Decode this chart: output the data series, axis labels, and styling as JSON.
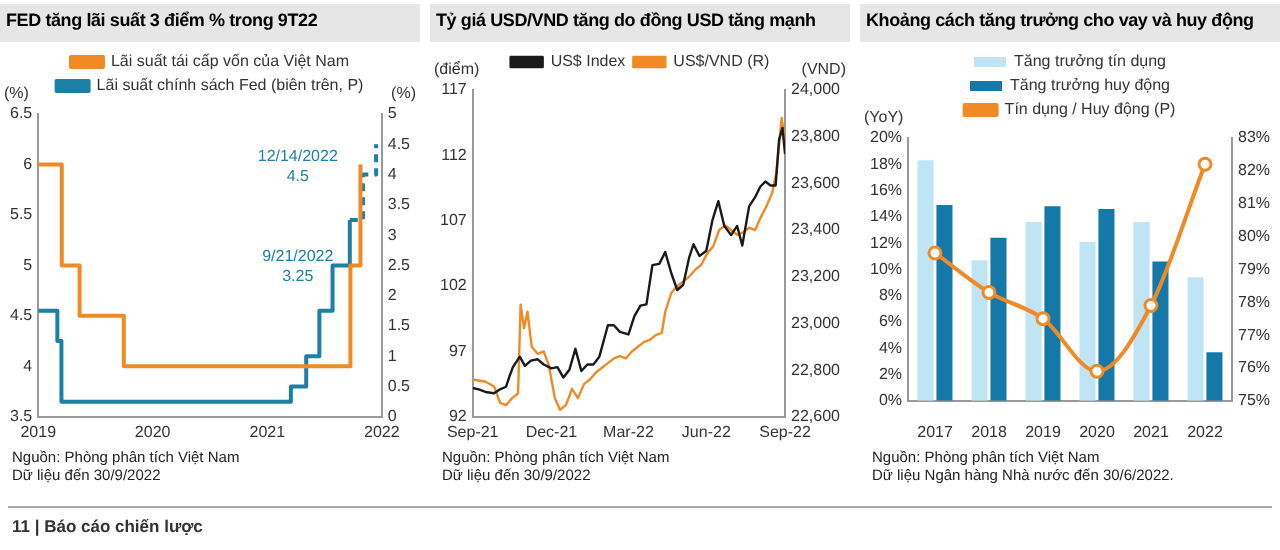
{
  "chart_data": [
    {
      "type": "step",
      "title": "FED tăng lãi suất 3 điểm % trong 9T22",
      "ylabel": "(%)",
      "y2label": "(%)",
      "legend": "top",
      "xlim": [
        "2019-01-01",
        "2022-01-01"
      ],
      "xticks": [
        {
          "value": "2019-01-01",
          "label": "2019"
        },
        {
          "value": "2020-01-01",
          "label": "2020"
        },
        {
          "value": "2021-01-01",
          "label": "2021"
        },
        {
          "value": "2022-01-01",
          "label": "2022"
        }
      ],
      "ylim": [
        3.5,
        6.5
      ],
      "yticks": [
        3.5,
        4,
        4.5,
        5,
        5.5,
        6,
        6.5
      ],
      "y2lim": [
        0,
        5
      ],
      "y2ticks": [
        0,
        0.5,
        1,
        1.5,
        2,
        2.5,
        3,
        3.5,
        4,
        4.5,
        5
      ],
      "series": [
        {
          "name": "Lãi suất tái cấp vốn của Việt Nam",
          "color": "#f08a24",
          "axis": "y",
          "x": [
            "2019-01-01",
            "2019-03-17",
            "2019-05-13",
            "2019-10-01",
            "2021-09-23",
            "2021-10-25"
          ],
          "values": [
            6,
            5,
            4.5,
            4,
            5,
            6
          ]
        },
        {
          "name": "Lãi suất chính sách Fed (biên trên, P)",
          "color": "#1b7fa6",
          "axis": "y2",
          "x": [
            "2019-01-01",
            "2019-03-03",
            "2019-03-16",
            "2021-03-17",
            "2021-05-05",
            "2021-06-16",
            "2021-07-28",
            "2021-09-21"
          ],
          "values": [
            1.75,
            1.25,
            0.25,
            0.5,
            1,
            1.75,
            2.5,
            3.25
          ]
        },
        {
          "color": "#1b7fa6",
          "axis": "y2",
          "line_style": "dashed",
          "x": [
            "2021-09-21",
            "2021-11-02",
            "2021-12-14"
          ],
          "values": [
            3.25,
            4,
            4.5
          ]
        }
      ],
      "annotations": [
        "9/21/2022\n3.25",
        "12/14/2022\n4.5",
        "Nguồn: Phòng phân tích Việt Nam",
        "Dữ liệu đến 30/9/2022",
        "11 | Báo cáo chiến lược"
      ]
    },
    {
      "type": "line",
      "title": "Tỷ giá USD/VND tăng do đồng USD tăng mạnh",
      "ylabel": "(điểm)",
      "y2label": "(VND)",
      "legend": "top",
      "xlim": [
        "2021-09-30",
        "2022-09-30"
      ],
      "xticks": [
        {
          "value": "2021-09-30",
          "label": "Sep-21"
        },
        {
          "value": "2021-12-31",
          "label": "Dec-21"
        },
        {
          "value": "2022-03-31",
          "label": "Mar-22"
        },
        {
          "value": "2022-06-30",
          "label": "Jun-22"
        },
        {
          "value": "2022-09-30",
          "label": "Sep-22"
        }
      ],
      "ylim": [
        92,
        117
      ],
      "yticks": [
        92,
        97,
        102,
        107,
        112,
        117
      ],
      "y2lim": [
        22600,
        24000
      ],
      "y2ticks": [
        {
          "value": 22600,
          "label": "22,600"
        },
        {
          "value": 22800,
          "label": "22,800"
        },
        {
          "value": 23000,
          "label": "23,000"
        },
        {
          "value": 23200,
          "label": "23,200"
        },
        {
          "value": 23400,
          "label": "23,400"
        },
        {
          "value": 23600,
          "label": "23,600"
        },
        {
          "value": 23800,
          "label": "23,800"
        },
        {
          "value": 24000,
          "label": "24,000"
        }
      ],
      "series": [
        {
          "name": "US$ Index",
          "color": "#1a1a1a",
          "axis": "y",
          "x": [
            "2021-09-30",
            "2021-10-07",
            "2021-10-15",
            "2021-10-25",
            "2021-11-01",
            "2021-11-08",
            "2021-11-12",
            "2021-11-16",
            "2021-11-24",
            "2021-11-30",
            "2021-12-07",
            "2021-12-15",
            "2021-12-22",
            "2021-12-31",
            "2022-01-07",
            "2022-01-14",
            "2022-01-21",
            "2022-01-28",
            "2022-02-04",
            "2022-02-11",
            "2022-02-18",
            "2022-02-25",
            "2022-03-07",
            "2022-03-14",
            "2022-03-21",
            "2022-03-31",
            "2022-04-07",
            "2022-04-14",
            "2022-04-21",
            "2022-04-28",
            "2022-05-06",
            "2022-05-13",
            "2022-05-20",
            "2022-05-27",
            "2022-06-03",
            "2022-06-10",
            "2022-06-15",
            "2022-06-22",
            "2022-06-30",
            "2022-07-07",
            "2022-07-14",
            "2022-07-21",
            "2022-07-29",
            "2022-08-05",
            "2022-08-11",
            "2022-08-19",
            "2022-08-26",
            "2022-09-01",
            "2022-09-07",
            "2022-09-13",
            "2022-09-19",
            "2022-09-23",
            "2022-09-27",
            "2022-09-30"
          ],
          "values": [
            94.2,
            94.1,
            93.9,
            93.8,
            94.1,
            94.3,
            95.1,
            95.8,
            96.6,
            95.9,
            96.3,
            96.4,
            96,
            95.7,
            95.8,
            95,
            95.6,
            97.2,
            95.5,
            96,
            96,
            96.6,
            99,
            99,
            98.5,
            98.3,
            99.7,
            100.5,
            100.6,
            103.6,
            103.7,
            104.6,
            103,
            101.7,
            102.1,
            104.2,
            105.2,
            104.3,
            104.7,
            107,
            108.5,
            106.6,
            105.9,
            106.6,
            105.1,
            108.1,
            108.8,
            109.6,
            110,
            109.7,
            109.7,
            113.2,
            114.1,
            112.1
          ]
        },
        {
          "name": "US$/VND (R)",
          "color": "#f08a24",
          "axis": "y2",
          "x": [
            "2021-09-30",
            "2021-10-15",
            "2021-10-25",
            "2021-11-01",
            "2021-11-08",
            "2021-11-15",
            "2021-11-22",
            "2021-11-25",
            "2021-11-29",
            "2021-12-03",
            "2021-12-08",
            "2021-12-15",
            "2021-12-22",
            "2021-12-28",
            "2022-01-04",
            "2022-01-10",
            "2022-01-17",
            "2022-01-24",
            "2022-01-31",
            "2022-02-07",
            "2022-02-14",
            "2022-02-21",
            "2022-02-28",
            "2022-03-07",
            "2022-03-14",
            "2022-03-21",
            "2022-03-28",
            "2022-04-04",
            "2022-04-11",
            "2022-04-18",
            "2022-04-25",
            "2022-05-02",
            "2022-05-09",
            "2022-05-13",
            "2022-05-20",
            "2022-05-27",
            "2022-06-03",
            "2022-06-10",
            "2022-06-17",
            "2022-06-24",
            "2022-07-01",
            "2022-07-08",
            "2022-07-15",
            "2022-07-22",
            "2022-07-29",
            "2022-08-05",
            "2022-08-12",
            "2022-08-19",
            "2022-08-26",
            "2022-09-01",
            "2022-09-08",
            "2022-09-15",
            "2022-09-20",
            "2022-09-26",
            "2022-09-30"
          ],
          "values": [
            22760,
            22750,
            22730,
            22660,
            22650,
            22680,
            22700,
            23080,
            22980,
            23050,
            22900,
            22870,
            22880,
            22820,
            22680,
            22630,
            22650,
            22720,
            22680,
            22740,
            22760,
            22790,
            22810,
            22830,
            22850,
            22860,
            22850,
            22880,
            22900,
            22920,
            22930,
            22950,
            22960,
            23050,
            23130,
            23160,
            23180,
            23200,
            23230,
            23250,
            23300,
            23330,
            23400,
            23420,
            23400,
            23380,
            23390,
            23410,
            23400,
            23450,
            23500,
            23560,
            23650,
            23880,
            23780
          ]
        }
      ],
      "annotations": [
        "Nguồn: Phòng phân tích Việt Nam",
        "Dữ liệu đến 30/9/2022"
      ]
    },
    {
      "type": "bar",
      "title": "Khoảng cách tăng trưởng cho vay và huy động",
      "ylabel": "(YoY)",
      "legend": "top",
      "categories": [
        "2017",
        "2018",
        "2019",
        "2020",
        "2021",
        "2022"
      ],
      "ylim": [
        0,
        20
      ],
      "yticks": [
        {
          "value": 0,
          "label": "0%"
        },
        {
          "value": 2,
          "label": "2%"
        },
        {
          "value": 4,
          "label": "4%"
        },
        {
          "value": 6,
          "label": "6%"
        },
        {
          "value": 8,
          "label": "8%"
        },
        {
          "value": 10,
          "label": "10%"
        },
        {
          "value": 12,
          "label": "12%"
        },
        {
          "value": 14,
          "label": "14%"
        },
        {
          "value": 16,
          "label": "16%"
        },
        {
          "value": 18,
          "label": "18%"
        },
        {
          "value": 20,
          "label": "20%"
        }
      ],
      "y2lim": [
        75,
        83
      ],
      "y2ticks": [
        {
          "value": 75,
          "label": "75%"
        },
        {
          "value": 76,
          "label": "76%"
        },
        {
          "value": 77,
          "label": "77%"
        },
        {
          "value": 78,
          "label": "78%"
        },
        {
          "value": 79,
          "label": "79%"
        },
        {
          "value": 80,
          "label": "80%"
        },
        {
          "value": 81,
          "label": "81%"
        },
        {
          "value": 82,
          "label": "82%"
        },
        {
          "value": 83,
          "label": "83%"
        }
      ],
      "series": [
        {
          "name": "Tăng trưởng tín dụng",
          "color": "#bfe4f3",
          "values": [
            18.3,
            10.7,
            13.6,
            12.1,
            13.6,
            9.4
          ]
        },
        {
          "name": "Tăng trưởng huy động",
          "color": "#1478a8",
          "values": [
            14.9,
            12.4,
            14.8,
            14.6,
            10.6,
            3.7
          ]
        },
        {
          "name": "Tín dụng / Huy động (P)",
          "type": "line",
          "color": "#f08a24",
          "axis": "y2",
          "marker": "circle",
          "values": [
            79.5,
            78.3,
            77.5,
            75.9,
            77.9,
            82.2
          ]
        }
      ],
      "annotations": [
        "Nguồn: Phòng phân tích Việt Nam",
        "Dữ liệu Ngân hàng Nhà nước đến 30/6/2022."
      ]
    }
  ]
}
